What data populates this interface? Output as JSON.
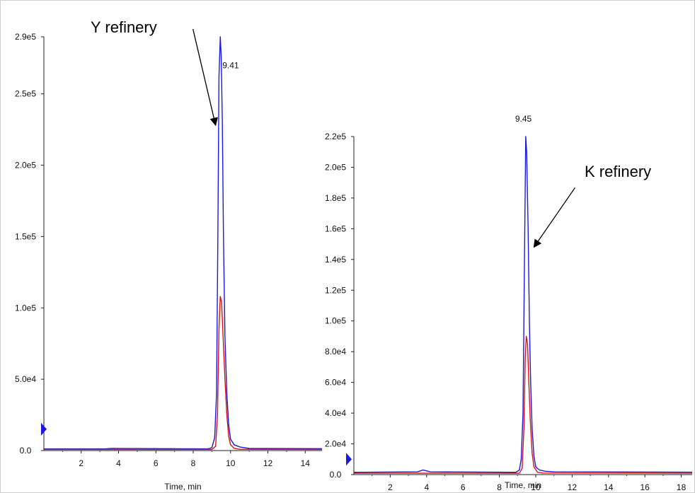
{
  "chart_data": [
    {
      "type": "line",
      "xlabel": "Time, min",
      "ylabel": "",
      "xlim": [
        0,
        14.9
      ],
      "ylim": [
        0,
        290000.0
      ],
      "x_ticks": [
        2,
        4,
        6,
        8,
        10,
        12,
        14
      ],
      "y_ticks": [
        {
          "value": 0,
          "label": "0.0"
        },
        {
          "value": 50000,
          "label": "5.0e4"
        },
        {
          "value": 100000,
          "label": "1.0e5"
        },
        {
          "value": 150000,
          "label": "1.5e5"
        },
        {
          "value": 200000,
          "label": "2.0e5"
        },
        {
          "value": 250000,
          "label": "2.5e5"
        },
        {
          "value": 290000,
          "label": "2.9e5"
        }
      ],
      "peak_label": {
        "text": "9.41",
        "x": 9.41,
        "y": 270000
      },
      "annotation": {
        "text": "Y refinery",
        "points_to": [
          9.2,
          228000
        ]
      },
      "baseline_marker": 15000,
      "series": [
        {
          "color": "#1a1adf",
          "x": [
            0,
            3.3,
            3.6,
            8.8,
            9.0,
            9.15,
            9.25,
            9.32,
            9.38,
            9.45,
            9.5,
            9.56,
            9.62,
            9.7,
            9.8,
            9.9,
            10.0,
            10.2,
            10.5,
            11.0,
            14.9
          ],
          "y": [
            1200,
            1200,
            1500,
            1200,
            2000,
            9000,
            40000,
            150000,
            262000,
            290000,
            276000,
            230000,
            150000,
            80000,
            40000,
            18000,
            8000,
            4000,
            2500,
            1500,
            1300
          ]
        },
        {
          "color": "#e01010",
          "x": [
            0,
            9.0,
            9.2,
            9.3,
            9.38,
            9.45,
            9.52,
            9.6,
            9.7,
            9.8,
            9.9,
            10.0,
            10.2,
            10.5,
            14.9
          ],
          "y": [
            800,
            800,
            3000,
            25000,
            85000,
            108000,
            104000,
            80000,
            50000,
            25000,
            10000,
            4000,
            1500,
            900,
            800
          ]
        }
      ]
    },
    {
      "type": "line",
      "xlabel": "Time, min",
      "ylabel": "",
      "xlim": [
        0,
        18.6
      ],
      "ylim": [
        0,
        220000.0
      ],
      "x_ticks": [
        2,
        4,
        6,
        8,
        10,
        12,
        14,
        16,
        18
      ],
      "y_ticks": [
        {
          "value": 0,
          "label": "0.0"
        },
        {
          "value": 20000,
          "label": "2.0e4"
        },
        {
          "value": 40000,
          "label": "4.0e4"
        },
        {
          "value": 60000,
          "label": "6.0e4"
        },
        {
          "value": 80000,
          "label": "8.0e4"
        },
        {
          "value": 100000,
          "label": "1.0e5"
        },
        {
          "value": 120000,
          "label": "1.2e5"
        },
        {
          "value": 140000,
          "label": "1.4e5"
        },
        {
          "value": 160000,
          "label": "1.6e5"
        },
        {
          "value": 180000,
          "label": "1.8e5"
        },
        {
          "value": 200000,
          "label": "2.0e5"
        },
        {
          "value": 220000,
          "label": "2.2e5"
        }
      ],
      "peak_label": {
        "text": "9.45",
        "x": 9.45,
        "y": 226000
      },
      "annotation": {
        "text": "K refinery",
        "points_to": [
          9.9,
          148000
        ]
      },
      "baseline_marker": 10000,
      "series": [
        {
          "color": "#1a1adf",
          "x": [
            0,
            3.5,
            3.8,
            4.2,
            8.9,
            9.1,
            9.2,
            9.3,
            9.38,
            9.45,
            9.5,
            9.58,
            9.65,
            9.72,
            9.8,
            9.9,
            10.0,
            10.2,
            10.5,
            11.0,
            18.6
          ],
          "y": [
            1500,
            1800,
            3000,
            1800,
            1500,
            3000,
            10000,
            40000,
            140000,
            220000,
            210000,
            160000,
            100000,
            60000,
            30000,
            12000,
            5000,
            3000,
            2200,
            1800,
            1600
          ]
        },
        {
          "color": "#e01010",
          "x": [
            0,
            9.1,
            9.25,
            9.35,
            9.42,
            9.48,
            9.55,
            9.62,
            9.7,
            9.8,
            9.9,
            10.1,
            10.4,
            18.6
          ],
          "y": [
            900,
            900,
            4000,
            30000,
            75000,
            90000,
            85000,
            60000,
            35000,
            14000,
            5000,
            1500,
            1000,
            900
          ]
        }
      ]
    }
  ]
}
